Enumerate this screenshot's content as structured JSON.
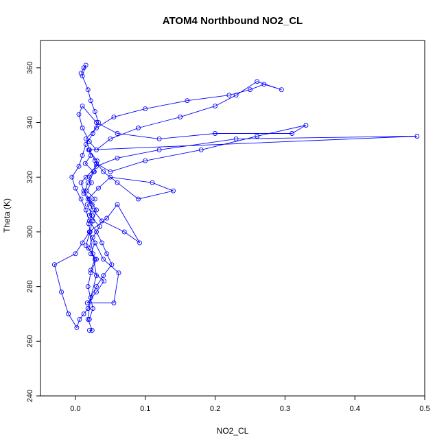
{
  "chart_data": {
    "type": "scatter",
    "title": "ATOM4 Northbound NO2_CL",
    "xlabel": "NO2_CL",
    "ylabel": "Theta (K)",
    "xlim": [
      -0.05,
      0.5
    ],
    "ylim": [
      240,
      370
    ],
    "x_ticks": [
      "0.0",
      "0.1",
      "0.2",
      "0.3",
      "0.4",
      "0.5"
    ],
    "y_ticks": [
      "240",
      "260",
      "280",
      "300",
      "320",
      "340",
      "360"
    ],
    "grid": false,
    "style": {
      "marker": "open-circle",
      "connected": true,
      "color": "#0000ff"
    },
    "series": [
      {
        "x": [
          0.02,
          0.025,
          0.018,
          0.022,
          0.03,
          0.015,
          0.021,
          0.019,
          0.024,
          0.017,
          0.028,
          0.016,
          0.023,
          0.02,
          0.026,
          0.014,
          0.022,
          0.019,
          0.031,
          0.027,
          0.018,
          0.012,
          0.024,
          0.02,
          0.035,
          0.025,
          0.019,
          0.028,
          0.022,
          0.041,
          0.03,
          0.017,
          0.055,
          0.062,
          0.04,
          0.028,
          0.02,
          0.045,
          0.06,
          0.092,
          0.07,
          0.038,
          0.025,
          0.018,
          0.033,
          0.05,
          0.11,
          0.14,
          0.09,
          0.06,
          0.04,
          0.028,
          0.02,
          0.015,
          0.03,
          0.055,
          0.1,
          0.16,
          0.22,
          0.25,
          0.27,
          0.295,
          0.26,
          0.23,
          0.2,
          0.15,
          0.09,
          0.05,
          0.03,
          0.02,
          0.01,
          0.005,
          0.01,
          0.03,
          0.06,
          0.12,
          0.2,
          0.31,
          0.33,
          0.26,
          0.18,
          0.1,
          0.05,
          0.03,
          0.02,
          0.489,
          0.23,
          0.12,
          0.06,
          0.03,
          0.015,
          0.008,
          0.012,
          0.02,
          0.03,
          0.025,
          0.02,
          0.028,
          0.022
        ],
        "y": [
          268,
          272,
          280,
          285,
          290,
          295,
          300,
          303,
          306,
          310,
          312,
          315,
          318,
          320,
          322,
          325,
          328,
          330,
          326,
          322,
          318,
          314,
          310,
          306,
          302,
          298,
          294,
          290,
          286,
          282,
          278,
          274,
          274,
          285,
          290,
          296,
          300,
          305,
          310,
          296,
          300,
          304,
          308,
          312,
          316,
          320,
          318,
          315,
          312,
          318,
          322,
          326,
          330,
          334,
          338,
          342,
          345,
          348,
          350,
          352,
          354,
          352,
          355,
          350,
          346,
          342,
          338,
          334,
          330,
          333,
          338,
          343,
          346,
          340,
          336,
          334,
          336,
          336,
          339,
          335,
          330,
          326,
          322,
          325,
          330,
          335,
          334,
          330,
          327,
          324,
          320,
          318,
          315,
          312,
          308,
          304,
          300,
          296,
          292
        ]
      },
      {
        "x": [
          0.008,
          0.012,
          0.015,
          0.01,
          0.018,
          0.022,
          0.028,
          0.033,
          0.025,
          0.015,
          0.01,
          0.005,
          -0.005,
          0.0,
          0.008,
          0.015,
          0.02,
          0.03,
          0.038,
          0.045,
          0.052,
          0.04,
          0.03,
          0.022,
          0.018,
          0.012,
          0.006,
          0.002,
          -0.01,
          -0.02,
          -0.03,
          0.0,
          0.01,
          0.02,
          0.025,
          0.03,
          0.022,
          0.018,
          0.024,
          0.02
        ],
        "y": [
          358,
          360,
          361,
          357,
          352,
          348,
          344,
          340,
          336,
          332,
          328,
          324,
          320,
          316,
          312,
          308,
          304,
          300,
          296,
          292,
          288,
          284,
          280,
          276,
          272,
          270,
          268,
          265,
          270,
          278,
          288,
          292,
          296,
          300,
          292,
          284,
          276,
          268,
          264,
          264
        ]
      }
    ]
  }
}
